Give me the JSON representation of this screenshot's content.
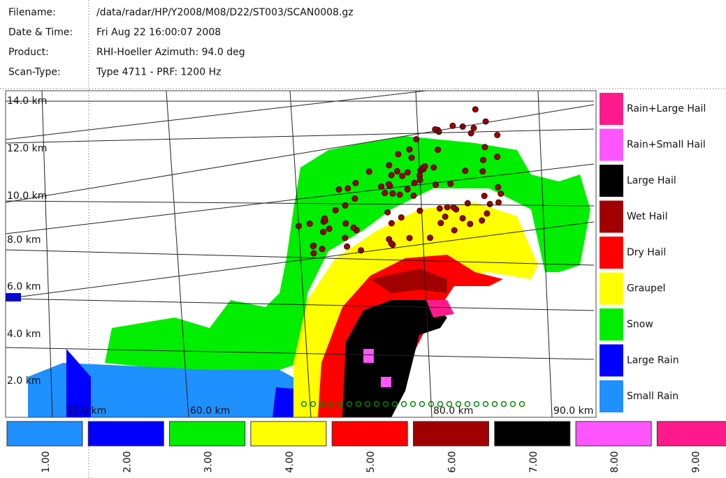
{
  "header": {
    "rows": [
      [
        "Filename:",
        "/data/radar/HP/Y2008/M08/D22/ST003/SCAN0008.gz"
      ],
      [
        "Date & Time:",
        "Fri Aug 22 16:00:07 2008"
      ],
      [
        "Product:",
        "RHI-Hoeller Azimuth: 94.0 deg"
      ],
      [
        "Scan-Type:",
        "Type 4711 - PRF: 1200 Hz"
      ]
    ]
  },
  "height_labels": [
    "14.0 km",
    "12.0 km",
    "10.0 km",
    "8.0 km",
    "6.0 km",
    "4.0 km",
    "2.0 km"
  ],
  "range_labels": [
    "50.0 km",
    "60.0 km",
    "80.0 km",
    "90.0 km"
  ],
  "legend": [
    {
      "label": "Rain+Large Hail",
      "color": "#ff1a8c"
    },
    {
      "label": "Rain+Small Hail",
      "color": "#ff55ff"
    },
    {
      "label": "Large Hail",
      "color": "#000000"
    },
    {
      "label": "Wet Hail",
      "color": "#a00000"
    },
    {
      "label": "Dry Hail",
      "color": "#ff0000"
    },
    {
      "label": "Graupel",
      "color": "#ffff00"
    },
    {
      "label": "Snow",
      "color": "#00ee00"
    },
    {
      "label": "Large Rain",
      "color": "#0000ff"
    },
    {
      "label": "Small Rain",
      "color": "#1e90ff"
    }
  ],
  "colorbar": [
    {
      "label": "1.00",
      "color": "#1e90ff"
    },
    {
      "label": "2.00",
      "color": "#0000ff"
    },
    {
      "label": "3.00",
      "color": "#00ee00"
    },
    {
      "label": "4.00",
      "color": "#ffff00"
    },
    {
      "label": "5.00",
      "color": "#ff0000"
    },
    {
      "label": "6.00",
      "color": "#a00000"
    },
    {
      "label": "7.00",
      "color": "#000000"
    },
    {
      "label": "8.00",
      "color": "#ff55ff"
    },
    {
      "label": "9.00",
      "color": "#ff1a8c"
    }
  ]
}
